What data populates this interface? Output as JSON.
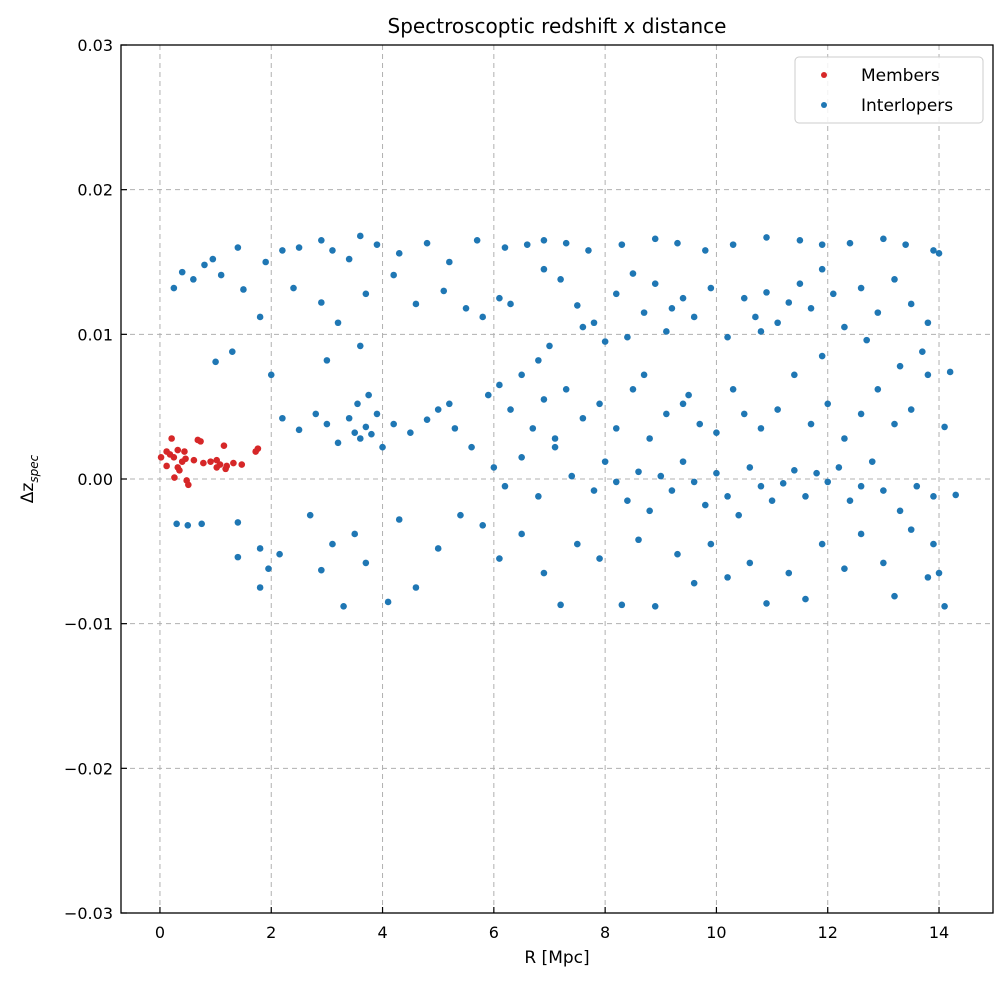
{
  "chart_data": {
    "type": "scatter",
    "title": "Spectroscoptic redshift x distance",
    "xlabel": "R [Mpc]",
    "ylabel_base": "Δz",
    "ylabel_sub": "spec",
    "xlim": [
      -0.7,
      14.97
    ],
    "ylim": [
      -0.03,
      0.03
    ],
    "xticks": [
      0,
      2,
      4,
      6,
      8,
      10,
      12,
      14
    ],
    "xtick_labels": [
      "0",
      "2",
      "4",
      "6",
      "8",
      "10",
      "12",
      "14"
    ],
    "yticks": [
      -0.03,
      -0.02,
      -0.01,
      0.0,
      0.01,
      0.02,
      0.03
    ],
    "ytick_labels": [
      "−0.03",
      "−0.02",
      "−0.01",
      "0.00",
      "0.01",
      "0.02",
      "0.03"
    ],
    "grid": true,
    "legend_position": "top-right",
    "series": [
      {
        "name": "Members",
        "color": "#d62728",
        "points": [
          [
            0.21,
            0.0028
          ],
          [
            0.73,
            0.0026
          ],
          [
            1.15,
            0.0023
          ],
          [
            1.76,
            0.0021
          ],
          [
            1.72,
            0.0019
          ],
          [
            0.12,
            0.0019
          ],
          [
            0.32,
            0.002
          ],
          [
            0.44,
            0.0019
          ],
          [
            0.02,
            0.0015
          ],
          [
            0.25,
            0.0015
          ],
          [
            0.46,
            0.0014
          ],
          [
            0.61,
            0.0013
          ],
          [
            0.78,
            0.0011
          ],
          [
            0.91,
            0.0012
          ],
          [
            1.02,
            0.0013
          ],
          [
            1.08,
            0.001
          ],
          [
            1.2,
            0.0009
          ],
          [
            1.32,
            0.0011
          ],
          [
            1.47,
            0.001
          ],
          [
            0.12,
            0.0009
          ],
          [
            0.32,
            0.0008
          ],
          [
            0.35,
            0.0006
          ],
          [
            0.26,
            0.0001
          ],
          [
            0.48,
            -0.0001
          ],
          [
            0.51,
            -0.0004
          ],
          [
            1.02,
            0.0008
          ],
          [
            1.18,
            0.0007
          ],
          [
            0.4,
            0.0012
          ],
          [
            0.18,
            0.0017
          ],
          [
            0.68,
            0.0027
          ]
        ]
      },
      {
        "name": "Interlopers",
        "color": "#1f77b4",
        "points": [
          [
            0.25,
            0.0132
          ],
          [
            0.4,
            0.0143
          ],
          [
            0.6,
            0.0138
          ],
          [
            0.8,
            0.0148
          ],
          [
            0.95,
            0.0152
          ],
          [
            1.1,
            0.0141
          ],
          [
            1.4,
            0.016
          ],
          [
            1.5,
            0.0131
          ],
          [
            1.8,
            0.0112
          ],
          [
            1.9,
            0.015
          ],
          [
            2.2,
            0.0158
          ],
          [
            2.5,
            0.016
          ],
          [
            2.9,
            0.0165
          ],
          [
            3.1,
            0.0158
          ],
          [
            3.4,
            0.0152
          ],
          [
            3.6,
            0.0168
          ],
          [
            3.9,
            0.0162
          ],
          [
            4.3,
            0.0156
          ],
          [
            4.8,
            0.0163
          ],
          [
            5.2,
            0.015
          ],
          [
            5.7,
            0.0165
          ],
          [
            6.2,
            0.016
          ],
          [
            6.6,
            0.0162
          ],
          [
            6.9,
            0.0165
          ],
          [
            7.3,
            0.0163
          ],
          [
            7.7,
            0.0158
          ],
          [
            8.3,
            0.0162
          ],
          [
            8.9,
            0.0166
          ],
          [
            9.3,
            0.0163
          ],
          [
            9.8,
            0.0158
          ],
          [
            10.3,
            0.0162
          ],
          [
            10.9,
            0.0167
          ],
          [
            11.5,
            0.0165
          ],
          [
            11.9,
            0.0162
          ],
          [
            12.4,
            0.0163
          ],
          [
            13.0,
            0.0166
          ],
          [
            13.4,
            0.0162
          ],
          [
            13.9,
            0.0158
          ],
          [
            14.0,
            0.0156
          ],
          [
            2.4,
            0.0132
          ],
          [
            2.9,
            0.0122
          ],
          [
            3.2,
            0.0108
          ],
          [
            3.7,
            0.0128
          ],
          [
            4.2,
            0.0141
          ],
          [
            4.6,
            0.0121
          ],
          [
            5.1,
            0.013
          ],
          [
            5.5,
            0.0118
          ],
          [
            5.8,
            0.0112
          ],
          [
            6.1,
            0.0125
          ],
          [
            6.3,
            0.0121
          ],
          [
            6.9,
            0.0145
          ],
          [
            7.2,
            0.0138
          ],
          [
            7.5,
            0.012
          ],
          [
            7.8,
            0.0108
          ],
          [
            8.0,
            0.0095
          ],
          [
            8.2,
            0.0128
          ],
          [
            8.5,
            0.0142
          ],
          [
            8.7,
            0.0115
          ],
          [
            8.9,
            0.0135
          ],
          [
            9.1,
            0.0102
          ],
          [
            9.4,
            0.0125
          ],
          [
            9.6,
            0.0112
          ],
          [
            9.9,
            0.0132
          ],
          [
            10.2,
            0.0098
          ],
          [
            10.5,
            0.0125
          ],
          [
            10.7,
            0.0112
          ],
          [
            10.9,
            0.0129
          ],
          [
            11.1,
            0.0108
          ],
          [
            11.3,
            0.0122
          ],
          [
            11.5,
            0.0135
          ],
          [
            11.7,
            0.0118
          ],
          [
            11.9,
            0.0145
          ],
          [
            12.1,
            0.0128
          ],
          [
            12.3,
            0.0105
          ],
          [
            12.6,
            0.0132
          ],
          [
            12.9,
            0.0115
          ],
          [
            13.2,
            0.0138
          ],
          [
            13.5,
            0.0121
          ],
          [
            13.8,
            0.0108
          ],
          [
            7.0,
            0.0092
          ],
          [
            7.6,
            0.0105
          ],
          [
            8.4,
            0.0098
          ],
          [
            9.2,
            0.0118
          ],
          [
            10.8,
            0.0102
          ],
          [
            12.7,
            0.0096
          ],
          [
            13.7,
            0.0088
          ],
          [
            14.2,
            0.0074
          ],
          [
            1.0,
            0.0081
          ],
          [
            1.3,
            0.0088
          ],
          [
            2.0,
            0.0072
          ],
          [
            2.2,
            0.0042
          ],
          [
            2.5,
            0.0034
          ],
          [
            2.8,
            0.0045
          ],
          [
            3.0,
            0.0038
          ],
          [
            3.2,
            0.0025
          ],
          [
            3.4,
            0.0042
          ],
          [
            3.5,
            0.0032
          ],
          [
            3.6,
            0.0028
          ],
          [
            3.7,
            0.0036
          ],
          [
            3.8,
            0.0031
          ],
          [
            3.9,
            0.0045
          ],
          [
            4.0,
            0.0022
          ],
          [
            3.55,
            0.0052
          ],
          [
            3.75,
            0.0058
          ],
          [
            4.2,
            0.0038
          ],
          [
            4.5,
            0.0032
          ],
          [
            4.8,
            0.0041
          ],
          [
            5.0,
            0.0048
          ],
          [
            5.2,
            0.0052
          ],
          [
            5.3,
            0.0035
          ],
          [
            5.6,
            0.0022
          ],
          [
            5.9,
            0.0058
          ],
          [
            6.1,
            0.0065
          ],
          [
            6.3,
            0.0048
          ],
          [
            6.5,
            0.0072
          ],
          [
            6.7,
            0.0035
          ],
          [
            6.9,
            0.0055
          ],
          [
            7.1,
            0.0028
          ],
          [
            7.3,
            0.0062
          ],
          [
            7.6,
            0.0042
          ],
          [
            7.9,
            0.0052
          ],
          [
            8.2,
            0.0035
          ],
          [
            8.5,
            0.0062
          ],
          [
            8.8,
            0.0028
          ],
          [
            9.1,
            0.0045
          ],
          [
            9.4,
            0.0052
          ],
          [
            9.5,
            0.0058
          ],
          [
            9.7,
            0.0038
          ],
          [
            10.0,
            0.0032
          ],
          [
            10.3,
            0.0062
          ],
          [
            10.5,
            0.0045
          ],
          [
            10.8,
            0.0035
          ],
          [
            11.1,
            0.0048
          ],
          [
            11.4,
            0.0072
          ],
          [
            11.7,
            0.0038
          ],
          [
            12.0,
            0.0052
          ],
          [
            12.3,
            0.0028
          ],
          [
            12.6,
            0.0045
          ],
          [
            12.9,
            0.0062
          ],
          [
            13.2,
            0.0038
          ],
          [
            13.5,
            0.0048
          ],
          [
            13.8,
            0.0072
          ],
          [
            14.1,
            0.0036
          ],
          [
            3.0,
            0.0082
          ],
          [
            3.6,
            0.0092
          ],
          [
            6.8,
            0.0082
          ],
          [
            8.7,
            0.0072
          ],
          [
            11.9,
            0.0085
          ],
          [
            13.3,
            0.0078
          ],
          [
            6.0,
            0.0008
          ],
          [
            6.2,
            -0.0005
          ],
          [
            6.5,
            0.0015
          ],
          [
            6.8,
            -0.0012
          ],
          [
            7.1,
            0.0022
          ],
          [
            7.4,
            0.0002
          ],
          [
            7.8,
            -0.0008
          ],
          [
            8.0,
            0.0012
          ],
          [
            8.2,
            -0.0002
          ],
          [
            8.4,
            -0.0015
          ],
          [
            8.6,
            0.0005
          ],
          [
            8.8,
            -0.0022
          ],
          [
            9.0,
            0.0002
          ],
          [
            9.2,
            -0.0008
          ],
          [
            9.4,
            0.0012
          ],
          [
            9.6,
            -0.0002
          ],
          [
            9.8,
            -0.0018
          ],
          [
            10.0,
            0.0004
          ],
          [
            10.2,
            -0.0012
          ],
          [
            10.4,
            -0.0025
          ],
          [
            10.6,
            0.0008
          ],
          [
            10.8,
            -0.0005
          ],
          [
            11.0,
            -0.0015
          ],
          [
            11.2,
            -0.0003
          ],
          [
            11.4,
            0.0006
          ],
          [
            11.6,
            -0.0012
          ],
          [
            11.8,
            0.0004
          ],
          [
            12.0,
            -0.0002
          ],
          [
            12.2,
            0.0008
          ],
          [
            12.4,
            -0.0015
          ],
          [
            12.6,
            -0.0005
          ],
          [
            12.8,
            0.0012
          ],
          [
            13.0,
            -0.0008
          ],
          [
            13.3,
            -0.0022
          ],
          [
            13.6,
            -0.0005
          ],
          [
            13.9,
            -0.0012
          ],
          [
            14.3,
            -0.0011
          ],
          [
            0.3,
            -0.0031
          ],
          [
            0.5,
            -0.0032
          ],
          [
            0.75,
            -0.0031
          ],
          [
            1.4,
            -0.003
          ],
          [
            1.4,
            -0.0054
          ],
          [
            1.8,
            -0.0048
          ],
          [
            2.15,
            -0.0052
          ],
          [
            1.95,
            -0.0062
          ],
          [
            1.8,
            -0.0075
          ],
          [
            2.7,
            -0.0025
          ],
          [
            2.9,
            -0.0063
          ],
          [
            3.1,
            -0.0045
          ],
          [
            3.3,
            -0.0088
          ],
          [
            3.5,
            -0.0038
          ],
          [
            3.7,
            -0.0058
          ],
          [
            4.1,
            -0.0085
          ],
          [
            4.3,
            -0.0028
          ],
          [
            4.6,
            -0.0075
          ],
          [
            5.0,
            -0.0048
          ],
          [
            5.4,
            -0.0025
          ],
          [
            5.8,
            -0.0032
          ],
          [
            6.1,
            -0.0055
          ],
          [
            6.5,
            -0.0038
          ],
          [
            6.9,
            -0.0065
          ],
          [
            7.2,
            -0.0087
          ],
          [
            7.5,
            -0.0045
          ],
          [
            7.9,
            -0.0055
          ],
          [
            8.3,
            -0.0087
          ],
          [
            8.6,
            -0.0042
          ],
          [
            8.9,
            -0.0088
          ],
          [
            9.3,
            -0.0052
          ],
          [
            9.6,
            -0.0072
          ],
          [
            9.9,
            -0.0045
          ],
          [
            10.2,
            -0.0068
          ],
          [
            10.6,
            -0.0058
          ],
          [
            10.9,
            -0.0086
          ],
          [
            11.3,
            -0.0065
          ],
          [
            11.6,
            -0.0083
          ],
          [
            11.9,
            -0.0045
          ],
          [
            12.3,
            -0.0062
          ],
          [
            12.6,
            -0.0038
          ],
          [
            13.0,
            -0.0058
          ],
          [
            13.2,
            -0.0081
          ],
          [
            13.5,
            -0.0035
          ],
          [
            13.8,
            -0.0068
          ],
          [
            14.0,
            -0.0065
          ],
          [
            14.1,
            -0.0088
          ],
          [
            13.9,
            -0.0045
          ]
        ]
      }
    ]
  }
}
